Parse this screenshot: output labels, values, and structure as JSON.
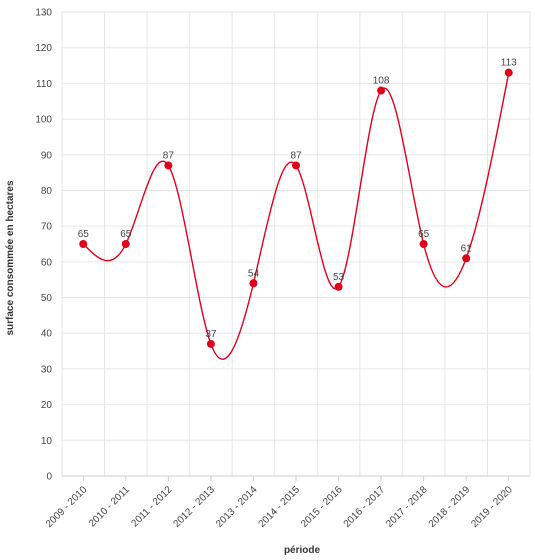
{
  "chart_data": {
    "type": "line",
    "title": "",
    "xlabel": "période",
    "ylabel": "surface consommée en hectares",
    "categories": [
      "2009 - 2010",
      "2010 - 2011",
      "2011 - 2012",
      "2012 - 2013",
      "2013 - 2014",
      "2014 - 2015",
      "2015 - 2016",
      "2016 - 2017",
      "2017 - 2018",
      "2018 - 2019",
      "2019 - 2020"
    ],
    "series": [
      {
        "values": [
          65,
          65,
          87,
          37,
          54,
          87,
          53,
          108,
          65,
          61,
          113
        ],
        "labels": [
          "65",
          "65",
          "87",
          "37",
          "54",
          "87",
          "53",
          "108",
          "65",
          "61",
          "113"
        ],
        "color": "#e0001b"
      }
    ],
    "ylim": [
      0,
      130
    ],
    "yticks": [
      0,
      10,
      20,
      30,
      40,
      50,
      60,
      70,
      80,
      90,
      100,
      110,
      120,
      130
    ],
    "smooth": true,
    "grid": true,
    "legend": "none",
    "colors": {
      "grid": "#e6e6e6",
      "axis": "#cccccc",
      "text": "#444444"
    }
  }
}
